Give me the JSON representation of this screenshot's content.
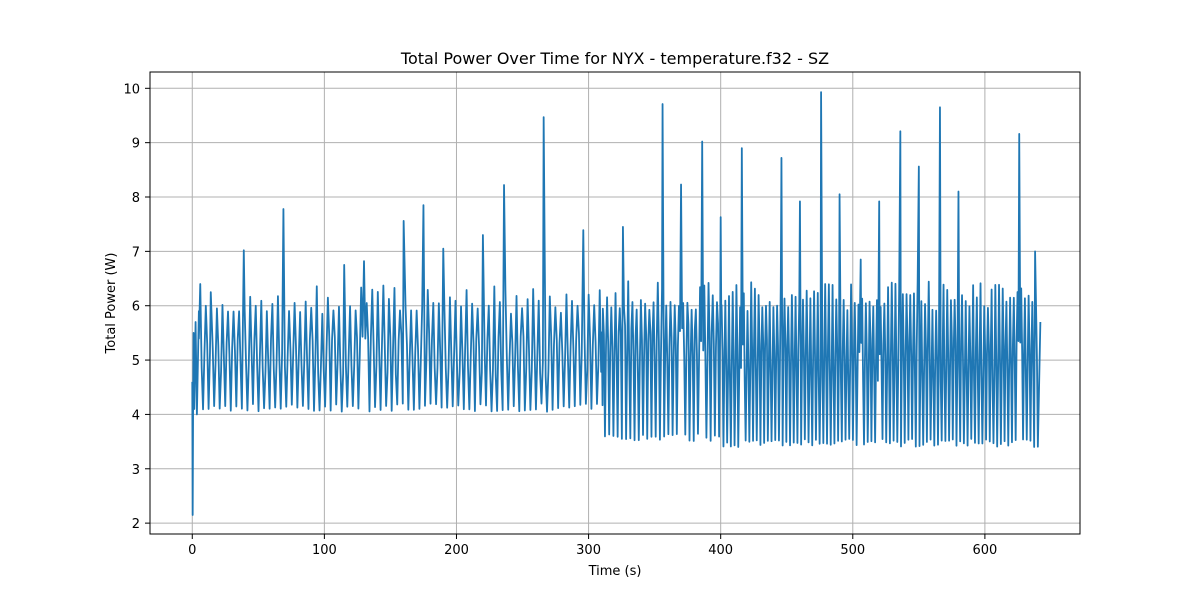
{
  "chart_data": {
    "type": "line",
    "title": "Total Power Over Time for NYX - temperature.f32 - SZ",
    "xlabel": "Time (s)",
    "ylabel": "Total Power (W)",
    "xlim": [
      -32,
      672
    ],
    "ylim": [
      1.8,
      10.3
    ],
    "xticks": [
      0,
      100,
      200,
      300,
      400,
      500,
      600
    ],
    "yticks": [
      2,
      3,
      4,
      5,
      6,
      7,
      8,
      9,
      10
    ],
    "grid": true,
    "legend": "none",
    "colors": {
      "series": "#1f77b4",
      "grid": "#b0b0b0",
      "axes": "#000000"
    },
    "series": [
      {
        "x_start": 0,
        "x_end": 642,
        "start_points": [
          [
            0,
            4.6
          ],
          [
            0.3,
            2.15
          ],
          [
            0.6,
            4.0
          ],
          [
            1.0,
            5.5
          ],
          [
            1.5,
            4.1
          ],
          [
            2.5,
            5.7
          ],
          [
            3.5,
            4.0
          ],
          [
            5,
            5.9
          ]
        ],
        "regimes": [
          {
            "t_start": 5,
            "t_end": 310,
            "period_s": 4.2,
            "low": 4.05,
            "high": 6.4,
            "mid": 5.1
          },
          {
            "t_start": 310,
            "t_end": 400,
            "period_s": 3.2,
            "low": 3.5,
            "high": 6.45,
            "mid": 5.3
          },
          {
            "t_start": 400,
            "t_end": 640,
            "period_s": 2.8,
            "low": 3.4,
            "high": 6.45,
            "mid": 5.0
          }
        ],
        "spikes": [
          [
            14,
            6.25
          ],
          [
            39,
            7.02
          ],
          [
            69,
            7.78
          ],
          [
            115,
            6.75
          ],
          [
            130,
            6.82
          ],
          [
            160,
            7.56
          ],
          [
            175,
            7.85
          ],
          [
            190,
            7.05
          ],
          [
            220,
            7.3
          ],
          [
            236,
            8.22
          ],
          [
            266,
            9.47
          ],
          [
            296,
            7.39
          ],
          [
            326,
            7.45
          ],
          [
            356,
            9.71
          ],
          [
            370,
            8.23
          ],
          [
            386,
            9.02
          ],
          [
            400,
            7.63
          ],
          [
            416,
            8.9
          ],
          [
            446,
            8.72
          ],
          [
            460,
            7.92
          ],
          [
            476,
            9.93
          ],
          [
            490,
            8.05
          ],
          [
            506,
            6.85
          ],
          [
            520,
            7.92
          ],
          [
            536,
            9.21
          ],
          [
            550,
            8.56
          ],
          [
            566,
            9.65
          ],
          [
            580,
            8.1
          ],
          [
            626,
            9.16
          ],
          [
            638,
            7.0
          ]
        ],
        "end_point": [
          642,
          5.7
        ]
      }
    ]
  }
}
